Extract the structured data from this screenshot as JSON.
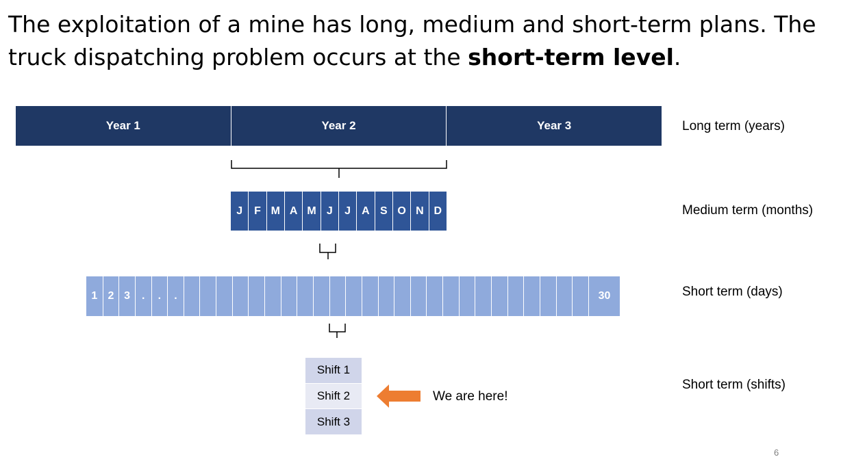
{
  "title": {
    "text_before": "The exploitation of a mine has long, medium and short-term plans. The truck dispatching problem occurs at the ",
    "bold": "short-term level",
    "text_after": "."
  },
  "years": [
    "Year 1",
    "Year 2",
    "Year 3"
  ],
  "months": [
    "J",
    "F",
    "M",
    "A",
    "M",
    "J",
    "J",
    "A",
    "S",
    "O",
    "N",
    "D"
  ],
  "days": {
    "labels": [
      "1",
      "2",
      "3",
      ".",
      ".",
      "."
    ],
    "last_label": "30"
  },
  "shifts": [
    "Shift 1",
    "Shift 2",
    "Shift 3"
  ],
  "levels": {
    "long": "Long term (years)",
    "medium": "Medium term (months)",
    "short_days": "Short term (days)",
    "short_shifts": "Short term (shifts)"
  },
  "marker": {
    "text": "We are here!",
    "arrow_color": "#ed7d31"
  },
  "colors": {
    "years": "#1f3864",
    "months": "#2f5597",
    "days": "#8faadc",
    "shifts": "#d0d5ea"
  },
  "page_number": "6"
}
